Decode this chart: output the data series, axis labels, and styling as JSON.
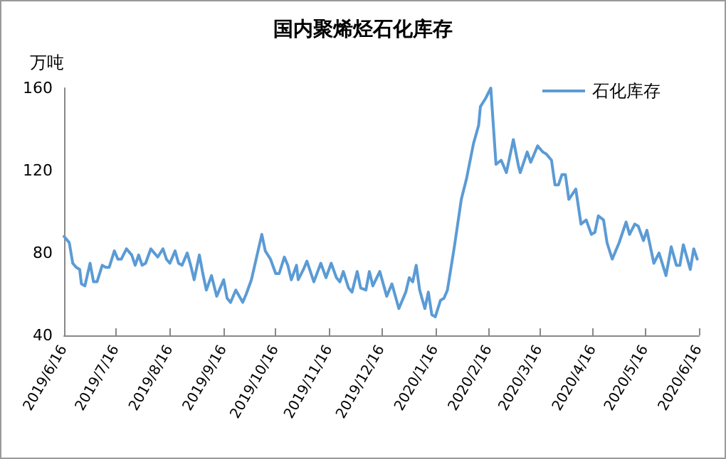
{
  "chart_data": {
    "type": "line",
    "title": "国内聚烯烃石化库存",
    "ylabel": "万吨",
    "x": [
      "2019-06-16",
      "2019-06-18",
      "2019-06-19",
      "2019-06-21",
      "2019-06-23",
      "2019-06-25",
      "2019-06-26",
      "2019-06-28",
      "2019-07-01",
      "2019-07-03",
      "2019-07-05",
      "2019-07-08",
      "2019-07-10",
      "2019-07-12",
      "2019-07-15",
      "2019-07-17",
      "2019-07-19",
      "2019-07-22",
      "2019-07-25",
      "2019-07-27",
      "2019-07-29",
      "2019-07-31",
      "2019-08-02",
      "2019-08-05",
      "2019-08-06",
      "2019-08-09",
      "2019-08-12",
      "2019-08-14",
      "2019-08-16",
      "2019-08-19",
      "2019-08-21",
      "2019-08-23",
      "2019-08-26",
      "2019-08-28",
      "2019-08-30",
      "2019-09-02",
      "2019-09-04",
      "2019-09-06",
      "2019-09-09",
      "2019-09-12",
      "2019-09-16",
      "2019-09-18",
      "2019-09-20",
      "2019-09-23",
      "2019-09-27",
      "2019-09-29",
      "2019-10-02",
      "2019-10-08",
      "2019-10-10",
      "2019-10-13",
      "2019-10-16",
      "2019-10-18",
      "2019-10-21",
      "2019-10-23",
      "2019-10-25",
      "2019-10-28",
      "2019-10-29",
      "2019-11-01",
      "2019-11-03",
      "2019-11-07",
      "2019-11-11",
      "2019-11-14",
      "2019-11-17",
      "2019-11-20",
      "2019-11-22",
      "2019-11-24",
      "2019-11-27",
      "2019-11-29",
      "2019-12-02",
      "2019-12-04",
      "2019-12-07",
      "2019-12-09",
      "2019-12-11",
      "2019-12-15",
      "2019-12-19",
      "2019-12-22",
      "2019-12-26",
      "2019-12-30",
      "2020-01-01",
      "2020-01-03",
      "2020-01-05",
      "2020-01-07",
      "2020-01-10",
      "2020-01-12",
      "2020-01-14",
      "2020-01-16",
      "2020-01-19",
      "2020-01-21",
      "2020-01-23",
      "2020-01-27",
      "2020-01-31",
      "2020-02-03",
      "2020-02-07",
      "2020-02-10",
      "2020-02-11",
      "2020-02-14",
      "2020-02-17",
      "2020-02-20",
      "2020-02-23",
      "2020-02-26",
      "2020-03-01",
      "2020-03-04",
      "2020-03-05",
      "2020-03-09",
      "2020-03-11",
      "2020-03-15",
      "2020-03-18",
      "2020-03-20",
      "2020-03-23",
      "2020-03-25",
      "2020-03-27",
      "2020-03-29",
      "2020-03-31",
      "2020-04-02",
      "2020-04-06",
      "2020-04-09",
      "2020-04-12",
      "2020-04-15",
      "2020-04-17",
      "2020-04-19",
      "2020-04-22",
      "2020-04-24",
      "2020-04-27",
      "2020-05-01",
      "2020-05-05",
      "2020-05-07",
      "2020-05-10",
      "2020-05-12",
      "2020-05-15",
      "2020-05-17",
      "2020-05-21",
      "2020-05-24",
      "2020-05-28",
      "2020-05-31",
      "2020-06-03",
      "2020-06-05",
      "2020-06-07",
      "2020-06-11",
      "2020-06-13",
      "2020-06-15"
    ],
    "series": [
      {
        "name": "石化库存",
        "color": "#5b9bd5",
        "values": [
          88,
          86,
          85,
          75,
          73,
          72,
          65,
          64,
          75,
          66,
          66,
          74,
          73,
          73,
          81,
          77,
          77,
          82,
          79,
          74,
          79,
          74,
          75,
          82,
          81,
          78,
          82,
          77,
          75,
          81,
          75,
          74,
          80,
          74,
          67,
          79,
          70,
          62,
          69,
          59,
          67,
          58,
          56,
          62,
          56,
          60,
          67,
          89,
          81,
          77,
          70,
          70,
          78,
          74,
          67,
          74,
          67,
          72,
          76,
          66,
          75,
          68,
          75,
          68,
          66,
          71,
          63,
          61,
          71,
          63,
          62,
          71,
          64,
          71,
          59,
          65,
          53,
          61,
          68,
          66,
          74,
          62,
          53,
          61,
          50,
          49,
          57,
          58,
          62,
          83,
          106,
          116,
          133,
          142,
          151,
          155,
          160,
          123,
          125,
          119,
          135,
          122,
          119,
          129,
          124,
          132,
          129,
          128,
          125,
          113,
          113,
          118,
          118,
          106,
          111,
          94,
          96,
          89,
          90,
          98,
          96,
          85,
          77,
          85,
          95,
          89,
          94,
          93,
          86,
          91,
          75,
          80,
          69,
          83,
          74,
          74,
          84,
          72,
          82,
          77
        ]
      }
    ],
    "xlim": [
      "2019-06-16",
      "2020-06-16"
    ],
    "xticks": [
      {
        "value": "2019-06-16",
        "label": "2019/6/16"
      },
      {
        "value": "2019-07-16",
        "label": "2019/7/16"
      },
      {
        "value": "2019-08-16",
        "label": "2019/8/16"
      },
      {
        "value": "2019-09-16",
        "label": "2019/9/16"
      },
      {
        "value": "2019-10-16",
        "label": "2019/10/16"
      },
      {
        "value": "2019-11-16",
        "label": "2019/11/16"
      },
      {
        "value": "2019-12-16",
        "label": "2019/12/16"
      },
      {
        "value": "2020-01-16",
        "label": "2020/1/16"
      },
      {
        "value": "2020-02-16",
        "label": "2020/2/16"
      },
      {
        "value": "2020-03-16",
        "label": "2020/3/16"
      },
      {
        "value": "2020-04-16",
        "label": "2020/4/16"
      },
      {
        "value": "2020-05-16",
        "label": "2020/5/16"
      },
      {
        "value": "2020-06-16",
        "label": "2020/6/16"
      }
    ],
    "ylim": [
      40,
      160
    ],
    "yticks": [
      40,
      80,
      120,
      160
    ],
    "grid": false,
    "legend": "top right",
    "marker": "none",
    "line_style": "solid"
  }
}
